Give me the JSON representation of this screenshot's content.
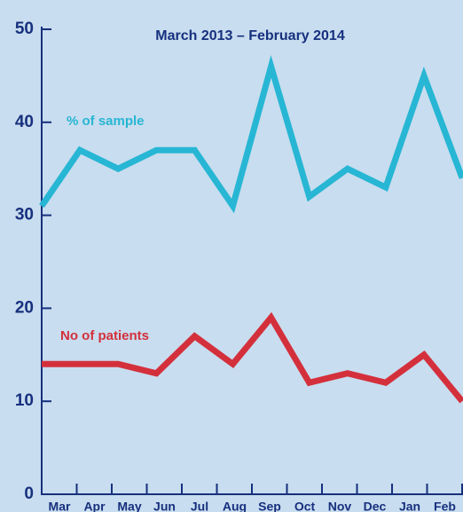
{
  "chart_data": {
    "type": "line",
    "title": "March 2013 – February 2014",
    "categories": [
      "Mar",
      "Apr",
      "May",
      "Jun",
      "Jul",
      "Aug",
      "Sep",
      "Oct",
      "Nov",
      "Dec",
      "Jan",
      "Feb"
    ],
    "series": [
      {
        "name": "% of sample",
        "color": "#27b6d4",
        "values": [
          31,
          37,
          35,
          37,
          37,
          31,
          46,
          32,
          35,
          33,
          45,
          34
        ]
      },
      {
        "name": "No of patients",
        "color": "#d4303c",
        "values": [
          14,
          14,
          14,
          13,
          17,
          14,
          19,
          12,
          13,
          12,
          15,
          10
        ]
      }
    ],
    "ylim": [
      0,
      50
    ],
    "yticks": [
      0,
      10,
      20,
      30,
      40,
      50
    ]
  }
}
